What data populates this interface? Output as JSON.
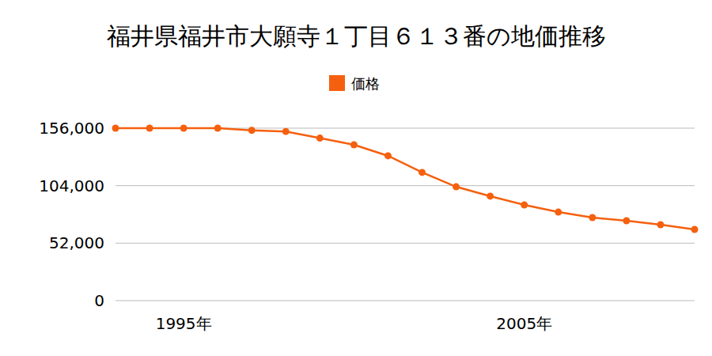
{
  "chart_data": {
    "type": "line",
    "title": "福井県福井市大願寺１丁目６１３番の地価推移",
    "categories": [
      null,
      null,
      "1995年",
      null,
      null,
      null,
      null,
      null,
      null,
      null,
      null,
      null,
      "2005年",
      null,
      null,
      null,
      null,
      null
    ],
    "series": [
      {
        "name": "価格",
        "color": "#f5600f",
        "marker": "circle",
        "line_style": "solid",
        "values": [
          156000,
          156000,
          156000,
          156000,
          154000,
          153000,
          147000,
          141000,
          131000,
          116000,
          103000,
          94500,
          86600,
          80100,
          75100,
          72300,
          68700,
          64400
        ]
      }
    ],
    "ylim": [
      0,
      156000
    ],
    "yticks": [
      0,
      {
        "value": 52000,
        "label": "52,000"
      },
      {
        "value": 104000,
        "label": "104,000"
      },
      {
        "value": 156000,
        "label": "156,000"
      }
    ],
    "grid": true,
    "legend": "top"
  }
}
